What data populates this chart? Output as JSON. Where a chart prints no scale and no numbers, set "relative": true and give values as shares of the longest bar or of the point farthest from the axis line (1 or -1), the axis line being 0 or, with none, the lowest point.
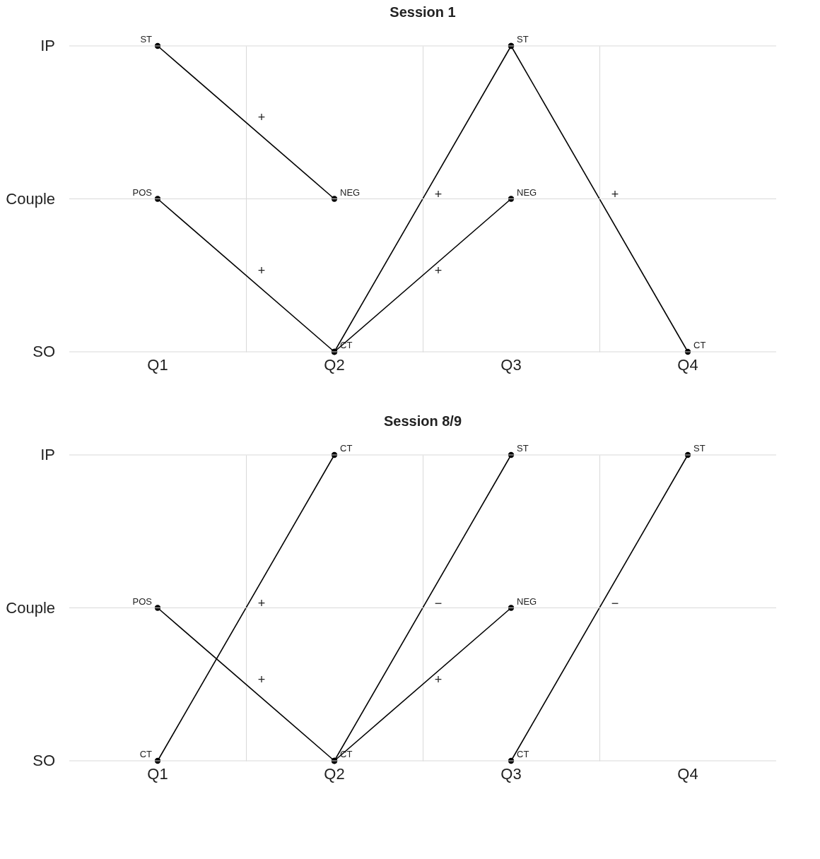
{
  "chart_data": [
    {
      "type": "line",
      "title": "Session 1",
      "categories": [
        "Q1",
        "Q2",
        "Q3",
        "Q4"
      ],
      "relative": true,
      "grid": true,
      "marker": "circle",
      "line_style": "solid",
      "series": [
        {
          "color": "#000000",
          "values": [
            1,
            0.5,
            null,
            null
          ]
        },
        {
          "color": "#000000",
          "values": [
            0.5,
            0,
            null,
            null
          ]
        },
        {
          "color": "#000000",
          "values": [
            null,
            0,
            1,
            null
          ]
        },
        {
          "color": "#000000",
          "values": [
            null,
            0,
            0.5,
            null
          ]
        },
        {
          "color": "#000000",
          "values": [
            null,
            null,
            1,
            0
          ]
        }
      ],
      "annotations": [
        "IP",
        "Couple",
        "SO",
        {
          "text": "ST",
          "x": "Q1",
          "y": 1
        },
        {
          "text": "POS",
          "x": "Q1",
          "y": 0.5
        },
        {
          "text": "NEG",
          "x": "Q2",
          "y": 0.5
        },
        {
          "text": "CT",
          "x": "Q2",
          "y": 0
        },
        {
          "text": "ST",
          "x": "Q3",
          "y": 1
        },
        {
          "text": "NEG",
          "x": "Q3",
          "y": 0.5
        },
        {
          "text": "CT",
          "x": "Q4",
          "y": 0
        },
        "+",
        "+",
        "+",
        "+",
        "+"
      ]
    },
    {
      "type": "line",
      "title": "Session 8/9",
      "categories": [
        "Q1",
        "Q2",
        "Q3",
        "Q4"
      ],
      "relative": true,
      "grid": true,
      "marker": "circle",
      "line_style": "solid",
      "series": [
        {
          "color": "#000000",
          "values": [
            0,
            1,
            null,
            null
          ]
        },
        {
          "color": "#000000",
          "values": [
            0.5,
            0,
            null,
            null
          ]
        },
        {
          "color": "#000000",
          "values": [
            null,
            0,
            1,
            null
          ]
        },
        {
          "color": "#000000",
          "values": [
            null,
            0,
            0.5,
            null
          ]
        },
        {
          "color": "#000000",
          "values": [
            null,
            null,
            0,
            1
          ]
        }
      ],
      "annotations": [
        "IP",
        "Couple",
        "SO",
        {
          "text": "CT",
          "x": "Q1",
          "y": 0
        },
        {
          "text": "POS",
          "x": "Q1",
          "y": 0.5
        },
        {
          "text": "CT",
          "x": "Q2",
          "y": 1
        },
        {
          "text": "CT",
          "x": "Q2",
          "y": 0
        },
        {
          "text": "ST",
          "x": "Q3",
          "y": 1
        },
        {
          "text": "NEG",
          "x": "Q3",
          "y": 0.5
        },
        {
          "text": "CT",
          "x": "Q3",
          "y": 0
        },
        {
          "text": "ST",
          "x": "Q4",
          "y": 1
        },
        "+",
        "+",
        "−",
        "+",
        "−"
      ]
    }
  ]
}
